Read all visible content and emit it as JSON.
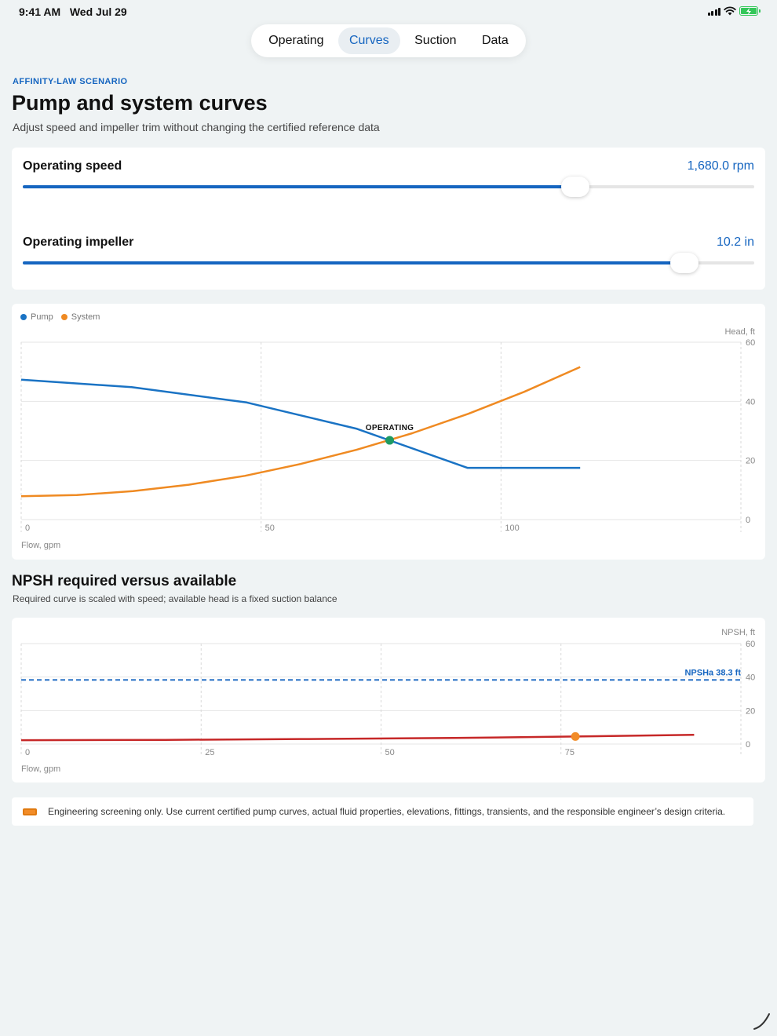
{
  "status": {
    "time": "9:41 AM",
    "date": "Wed Jul 29"
  },
  "tabs": [
    {
      "label": "Operating",
      "active": false
    },
    {
      "label": "Curves",
      "active": true
    },
    {
      "label": "Suction",
      "active": false
    },
    {
      "label": "Data",
      "active": false
    }
  ],
  "header": {
    "eyebrow": "AFFINITY-LAW SCENARIO",
    "title": "Pump and system curves",
    "subtitle": "Adjust speed and impeller trim without changing the certified reference data"
  },
  "sliders": {
    "speed": {
      "label": "Operating speed",
      "value": "1,680.0 rpm",
      "fraction": 0.755
    },
    "impeller": {
      "label": "Operating impeller",
      "value": "10.2 in",
      "fraction": 0.905
    }
  },
  "colors": {
    "accent": "#1565c0",
    "pump": "#1a73c4",
    "system": "#ef8a22",
    "operating": "#1e9b63",
    "npshr": "#c62828",
    "npshr_point": "#f28c28"
  },
  "npsh": {
    "title": "NPSH required versus available",
    "subtitle": "Required curve is scaled with speed; available head is a fixed suction balance"
  },
  "note": "Engineering screening only. Use current certified pump curves, actual fluid properties, elevations, fittings, transients, and the responsible engineer’s design criteria.",
  "chart_data": [
    {
      "type": "line",
      "legend": [
        "Pump",
        "System"
      ],
      "xlabel": "Flow, gpm",
      "ylabel": "Head, ft",
      "xlim": [
        0,
        150
      ],
      "ylim": [
        0,
        60
      ],
      "xticks": [
        "0",
        "50",
        "100"
      ],
      "yticks": [
        "0",
        "20",
        "40",
        "60"
      ],
      "grid": true,
      "legend_position": "top-left",
      "series": [
        {
          "name": "Pump",
          "x": [
            0,
            23,
            47,
            70,
            93,
            116.5
          ],
          "y": [
            47.3,
            44.8,
            39.6,
            30.7,
            17.5,
            17.5
          ]
        },
        {
          "name": "System",
          "x": [
            0,
            11.6,
            23.3,
            34.9,
            46.6,
            58.2,
            69.9,
            81.5,
            93.2,
            104.8,
            116.5
          ],
          "y": [
            7.9,
            8.3,
            9.6,
            11.8,
            14.8,
            18.8,
            23.6,
            29.2,
            35.8,
            43.2,
            51.6
          ]
        }
      ],
      "operating_point": {
        "x": 76.8,
        "y": 26.8,
        "label": "OPERATING"
      }
    },
    {
      "type": "line",
      "xlabel": "Flow, gpm",
      "ylabel": "NPSH, ft",
      "xlim": [
        0,
        100
      ],
      "ylim": [
        0,
        60
      ],
      "xticks": [
        "0",
        "25",
        "50",
        "75"
      ],
      "yticks": [
        "0",
        "20",
        "40",
        "60"
      ],
      "grid": true,
      "series": [
        {
          "name": "NPSHr",
          "x": [
            0,
            20,
            40,
            60,
            77,
            93.5
          ],
          "y": [
            2.3,
            2.5,
            3.0,
            3.6,
            4.5,
            5.5
          ]
        }
      ],
      "available": {
        "value": 38.3,
        "label": "NPSHa 38.3 ft"
      },
      "point": {
        "x": 77,
        "y": 4.5
      }
    }
  ]
}
